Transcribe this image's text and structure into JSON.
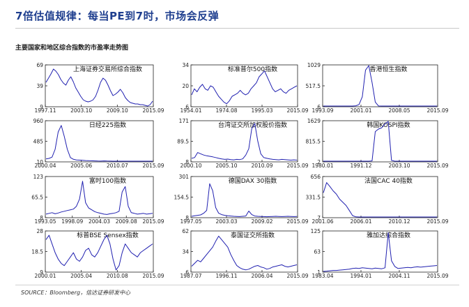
{
  "header": {
    "title": "7倍估值规律：每当PE到7时，市场会反弹",
    "subtitle": "主要国家和地区综合指数的市盈率走势图",
    "source": "SOURCE：Bloomberg，信达证券研发中心"
  },
  "colors": {
    "line": "#2020b0",
    "axis": "#222222",
    "title": "#1f3f8f"
  },
  "chart_data": [
    {
      "type": "line",
      "title": "上海证券交易所综合指数",
      "xticks": [
        "1997.11",
        "2003.10",
        "2009.10",
        "2015.09"
      ],
      "yticks": [
        "9",
        "39",
        "69"
      ],
      "ylim": [
        9,
        69
      ],
      "series": [
        {
          "values": [
            44,
            50,
            56,
            63,
            60,
            55,
            48,
            43,
            40,
            47,
            52,
            45,
            36,
            30,
            24,
            19,
            17,
            16,
            17,
            19,
            24,
            33,
            44,
            50,
            47,
            40,
            32,
            25,
            27,
            30,
            34,
            29,
            22,
            18,
            15,
            14,
            13,
            13,
            12,
            12,
            11,
            10,
            12,
            17
          ]
        }
      ]
    },
    {
      "type": "line",
      "title": "标准普尔500指数",
      "xticks": [
        "1954.01",
        "1974.08",
        "1995.03",
        "2015.09"
      ],
      "yticks": [
        "6",
        "20",
        "34"
      ],
      "ylim": [
        6,
        34
      ],
      "series": [
        {
          "values": [
            14,
            18,
            16,
            19,
            21,
            18,
            17,
            20,
            19,
            16,
            13,
            11,
            9,
            8,
            10,
            13,
            14,
            15,
            17,
            15,
            14,
            15,
            18,
            20,
            22,
            26,
            28,
            30,
            26,
            22,
            18,
            16,
            17,
            18,
            16,
            15,
            17,
            18,
            19,
            20
          ]
        }
      ]
    },
    {
      "type": "line",
      "title": "香港恒生指数",
      "xticks": [
        "1993.09",
        "2001.01",
        "2008.05",
        "2015.09"
      ],
      "yticks": [
        "6",
        "517.5",
        "1029"
      ],
      "ylim": [
        6,
        1029
      ],
      "series": [
        {
          "values": [
            15,
            14,
            15,
            16,
            14,
            15,
            17,
            16,
            18,
            22,
            30,
            60,
            250,
            900,
            1020,
            600,
            120,
            25,
            18,
            16,
            15,
            17,
            18,
            15,
            14,
            16,
            17,
            15,
            14,
            15,
            16,
            14,
            13,
            14,
            15,
            16
          ]
        }
      ]
    },
    {
      "type": "line",
      "title": "日经225指数",
      "xticks": [
        "2000.04",
        "2005.06",
        "2010.07",
        "2015.09"
      ],
      "yticks": [
        "10",
        "485",
        "960"
      ],
      "ylim": [
        10,
        960
      ],
      "series": [
        {
          "values": [
            80,
            90,
            120,
            300,
            700,
            850,
            600,
            300,
            110,
            70,
            55,
            50,
            45,
            40,
            38,
            35,
            33,
            30,
            28,
            32,
            30,
            28,
            26,
            25,
            24,
            23,
            22,
            21,
            20,
            22,
            21,
            20,
            19,
            20,
            19,
            20
          ]
        }
      ]
    },
    {
      "type": "line",
      "title": "台湾证交所加权股价指数",
      "xticks": [
        "2000.10",
        "2005.10",
        "2010.09",
        "2015.09"
      ],
      "yticks": [
        "8",
        "89.5",
        "171"
      ],
      "ylim": [
        8,
        171
      ],
      "series": [
        {
          "values": [
            22,
            25,
            45,
            40,
            35,
            32,
            30,
            28,
            25,
            22,
            20,
            18,
            19,
            17,
            16,
            18,
            17,
            20,
            35,
            60,
            140,
            160,
            90,
            40,
            25,
            22,
            20,
            18,
            17,
            16,
            18,
            17,
            16,
            15,
            16,
            15
          ]
        }
      ]
    },
    {
      "type": "line",
      "title": "韩国KOSPI指数",
      "xticks": [
        "1980.01",
        "1991.12",
        "2003.10",
        "2015.09"
      ],
      "yticks": [
        "2",
        "815.5",
        "1629"
      ],
      "ylim": [
        2,
        1629
      ],
      "series": [
        {
          "values": [
            10,
            12,
            14,
            13,
            15,
            14,
            16,
            18,
            17,
            15,
            16,
            18,
            20,
            22,
            25,
            40,
            1200,
            1300,
            1350,
            1500,
            1600,
            60,
            25,
            20,
            18,
            16,
            15,
            14,
            15,
            16,
            15,
            14,
            13,
            14,
            15,
            14
          ]
        }
      ]
    },
    {
      "type": "line",
      "title": "富时100指数",
      "xticks": [
        "1993.05",
        "1998.09",
        "2004.03",
        "2009.08",
        "2015.09"
      ],
      "yticks": [
        "8",
        "65.5",
        "123"
      ],
      "ylim": [
        8,
        123
      ],
      "series": [
        {
          "values": [
            18,
            20,
            22,
            19,
            21,
            24,
            26,
            28,
            30,
            32,
            40,
            60,
            110,
            50,
            35,
            30,
            25,
            22,
            20,
            18,
            17,
            19,
            20,
            22,
            26,
            80,
            95,
            40,
            22,
            20,
            18,
            19,
            20,
            18,
            19,
            20
          ]
        }
      ]
    },
    {
      "type": "line",
      "title": "德国DAX 30指数",
      "xticks": [
        "1997.05",
        "2003.03",
        "2009.02",
        "2015.09"
      ],
      "yticks": [
        "8",
        "154.5",
        "301"
      ],
      "ylim": [
        8,
        301
      ],
      "series": [
        {
          "values": [
            18,
            22,
            25,
            28,
            40,
            60,
            250,
            200,
            80,
            40,
            30,
            25,
            22,
            20,
            18,
            17,
            16,
            18,
            20,
            55,
            30,
            20,
            18,
            17,
            16,
            15,
            16,
            17,
            18,
            17,
            16,
            17,
            18,
            17,
            16,
            17
          ]
        }
      ]
    },
    {
      "type": "line",
      "title": "法国CAC 40指数",
      "xticks": [
        "2001.06",
        "2006.01",
        "2010.12",
        "2015.09"
      ],
      "yticks": [
        "7",
        "331.5",
        "656"
      ],
      "ylim": [
        7,
        656
      ],
      "series": [
        {
          "values": [
            400,
            560,
            500,
            430,
            380,
            300,
            250,
            200,
            120,
            40,
            20,
            15,
            14,
            13,
            14,
            15,
            13,
            14,
            12,
            13,
            14,
            12,
            13,
            14,
            13,
            12,
            13,
            14,
            13,
            12,
            13,
            14,
            13,
            12,
            13,
            14
          ]
        }
      ]
    },
    {
      "type": "line",
      "title": "标普BSE Sensex指数",
      "xticks": [
        "2000.01",
        "2005.04",
        "2010.08",
        "2015.09"
      ],
      "yticks": [
        "9",
        "18.5",
        "28"
      ],
      "ylim": [
        9,
        28
      ],
      "series": [
        {
          "values": [
            24,
            26,
            22,
            18,
            15,
            13,
            12,
            14,
            16,
            18,
            15,
            14,
            16,
            19,
            20,
            17,
            16,
            18,
            21,
            24,
            26,
            22,
            15,
            10,
            12,
            18,
            22,
            20,
            18,
            17,
            16,
            18,
            19,
            20,
            21,
            22
          ]
        }
      ]
    },
    {
      "type": "line",
      "title": "泰国证交所指数",
      "xticks": [
        "1987.07",
        "1996.11",
        "2006.04",
        "2015.09"
      ],
      "yticks": [
        "6",
        "34",
        "62"
      ],
      "ylim": [
        6,
        62
      ],
      "series": [
        {
          "values": [
            14,
            18,
            22,
            20,
            25,
            30,
            35,
            40,
            48,
            55,
            50,
            45,
            40,
            30,
            22,
            15,
            12,
            10,
            9,
            10,
            12,
            14,
            15,
            13,
            12,
            10,
            11,
            13,
            14,
            15,
            16,
            14,
            13,
            14,
            15,
            16
          ]
        }
      ]
    },
    {
      "type": "line",
      "title": "雅加达综合指数",
      "xticks": [
        "1983.04",
        "1994.01",
        "2004.11",
        "2015.09"
      ],
      "yticks": [
        "1",
        "63",
        "125"
      ],
      "ylim": [
        1,
        125
      ],
      "series": [
        {
          "values": [
            3,
            4,
            5,
            6,
            6,
            7,
            8,
            9,
            10,
            12,
            13,
            12,
            14,
            13,
            12,
            11,
            13,
            12,
            11,
            14,
            120,
            35,
            18,
            12,
            13,
            14,
            15,
            14,
            16,
            17,
            16,
            17,
            18,
            19,
            20,
            21
          ]
        }
      ]
    }
  ]
}
